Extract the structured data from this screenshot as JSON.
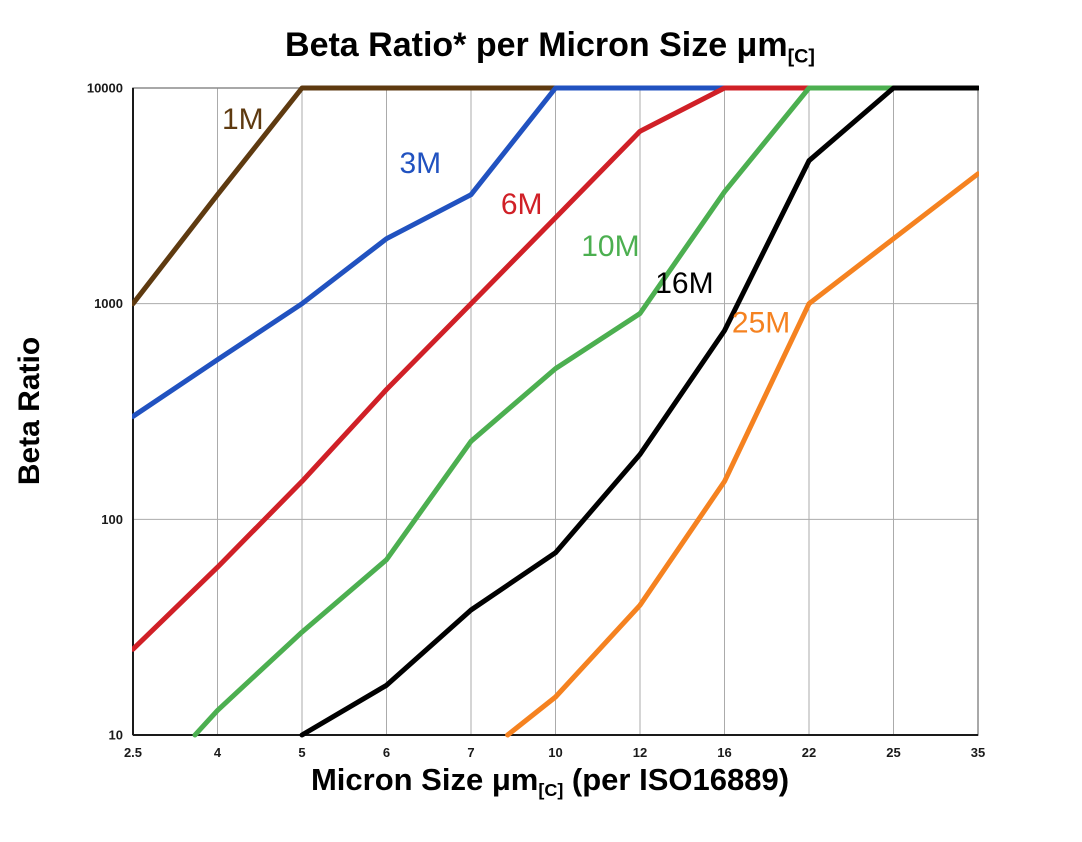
{
  "page": {
    "background": "#ffffff"
  },
  "chart_data": {
    "type": "line",
    "title": {
      "main": "Beta Ratio* per Micron Size μm",
      "sub": "[C]"
    },
    "xlabel": {
      "main": "Micron Size μm",
      "sub": "[C]",
      "suffix": " (per ISO16889)"
    },
    "ylabel": "Beta Ratio",
    "x_scale": "category",
    "y_scale": "log",
    "grid": true,
    "grid_color": "#ababab",
    "border_color": "#8c8c8c",
    "axis_color": "#1a1a1a",
    "tick_label_color": "#1a1a1a",
    "x_ticks": [
      "2.5",
      "4",
      "5",
      "6",
      "7",
      "10",
      "12",
      "16",
      "22",
      "25",
      "35"
    ],
    "x_tick_values": [
      2.5,
      4,
      5,
      6,
      7,
      10,
      12,
      16,
      22,
      25,
      35
    ],
    "y_ticks": [
      "10",
      "100",
      "1000",
      "10000"
    ],
    "y_tick_values": [
      10,
      100,
      1000,
      10000
    ],
    "ylim": [
      10,
      10000
    ],
    "line_width": 5,
    "series": [
      {
        "name": "1M",
        "color": "#5e3a10",
        "points": [
          [
            2.5,
            1000
          ],
          [
            4,
            3200
          ],
          [
            5,
            10000
          ],
          [
            35,
            10000
          ]
        ],
        "label": {
          "x": 4.3,
          "y": 7200
        }
      },
      {
        "name": "3M",
        "color": "#2152c0",
        "points": [
          [
            2.5,
            300
          ],
          [
            4,
            550
          ],
          [
            5,
            1000
          ],
          [
            6,
            2000
          ],
          [
            7,
            3200
          ],
          [
            10,
            10000
          ],
          [
            35,
            10000
          ]
        ],
        "label": {
          "x": 6.4,
          "y": 4500
        }
      },
      {
        "name": "6M",
        "color": "#d02027",
        "points": [
          [
            2.5,
            25
          ],
          [
            4,
            60
          ],
          [
            5,
            150
          ],
          [
            6,
            400
          ],
          [
            7,
            1000
          ],
          [
            10,
            2500
          ],
          [
            12,
            6300
          ],
          [
            16,
            10000
          ],
          [
            35,
            10000
          ]
        ],
        "label": {
          "x": 8.8,
          "y": 2900
        }
      },
      {
        "name": "10M",
        "color": "#4caf50",
        "points": [
          [
            3.6,
            10
          ],
          [
            4,
            13
          ],
          [
            5,
            30
          ],
          [
            6,
            65
          ],
          [
            7,
            230
          ],
          [
            10,
            500
          ],
          [
            12,
            900
          ],
          [
            16,
            3300
          ],
          [
            22,
            10000
          ],
          [
            35,
            10000
          ]
        ],
        "label": {
          "x": 11.3,
          "y": 1850
        }
      },
      {
        "name": "16M",
        "color": "#000000",
        "points": [
          [
            5,
            10
          ],
          [
            6,
            17
          ],
          [
            7,
            38
          ],
          [
            10,
            70
          ],
          [
            12,
            200
          ],
          [
            16,
            750
          ],
          [
            22,
            4600
          ],
          [
            25,
            10000
          ],
          [
            35,
            10000
          ]
        ],
        "label": {
          "x": 14.1,
          "y": 1250
        }
      },
      {
        "name": "25M",
        "color": "#f58220",
        "points": [
          [
            8.3,
            10
          ],
          [
            10,
            15
          ],
          [
            12,
            40
          ],
          [
            16,
            150
          ],
          [
            22,
            1000
          ],
          [
            25,
            2000
          ],
          [
            35,
            4000
          ]
        ],
        "label": {
          "x": 18.6,
          "y": 820
        }
      }
    ]
  }
}
